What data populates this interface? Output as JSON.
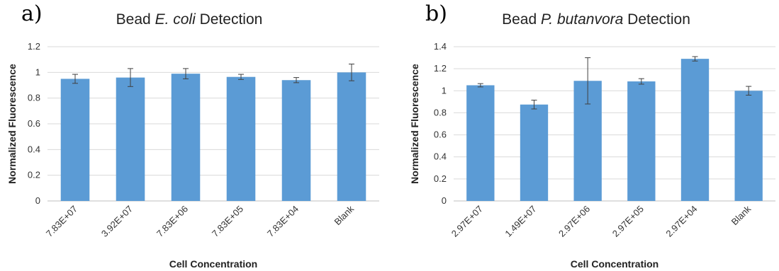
{
  "colors": {
    "bar": "#5b9bd5",
    "grid": "#d9d9d9",
    "error_bar": "#404040"
  },
  "chart_data": [
    {
      "panel_letter": "a)",
      "type": "bar",
      "title_parts": [
        {
          "text": "Bead ",
          "italic": false
        },
        {
          "text": "E. coli",
          "italic": true
        },
        {
          "text": " Detection",
          "italic": false
        }
      ],
      "xlabel": "Cell Concentration",
      "ylabel": "Normalized Fluorescence",
      "ylim": [
        0,
        1.2
      ],
      "yticks": [
        "0",
        "0.2",
        "0.4",
        "0.6",
        "0.8",
        "1",
        "1.2"
      ],
      "categories": [
        "7.83E+07",
        "3.92E+07",
        "7.83E+06",
        "7.83E+05",
        "7.83E+04",
        "Blank"
      ],
      "values": [
        0.95,
        0.96,
        0.99,
        0.965,
        0.94,
        1.0
      ],
      "errors": [
        0.035,
        0.07,
        0.04,
        0.02,
        0.02,
        0.065
      ],
      "grid": true
    },
    {
      "panel_letter": "b)",
      "type": "bar",
      "title_parts": [
        {
          "text": "Bead ",
          "italic": false
        },
        {
          "text": "P. butanvora",
          "italic": true
        },
        {
          "text": " Detection",
          "italic": false
        }
      ],
      "xlabel": "Cell Concentration",
      "ylabel": "Normalized Fluorescence",
      "ylim": [
        0,
        1.4
      ],
      "yticks": [
        "0",
        "0.2",
        "0.4",
        "0.6",
        "0.8",
        "1",
        "1.2",
        "1.4"
      ],
      "categories": [
        "2.97E+07",
        "1.49E+07",
        "2.97E+06",
        "2.97E+05",
        "2.97E+04",
        "Blank"
      ],
      "values": [
        1.05,
        0.875,
        1.09,
        1.085,
        1.29,
        1.0
      ],
      "errors": [
        0.015,
        0.04,
        0.21,
        0.025,
        0.02,
        0.04
      ],
      "grid": true
    }
  ]
}
